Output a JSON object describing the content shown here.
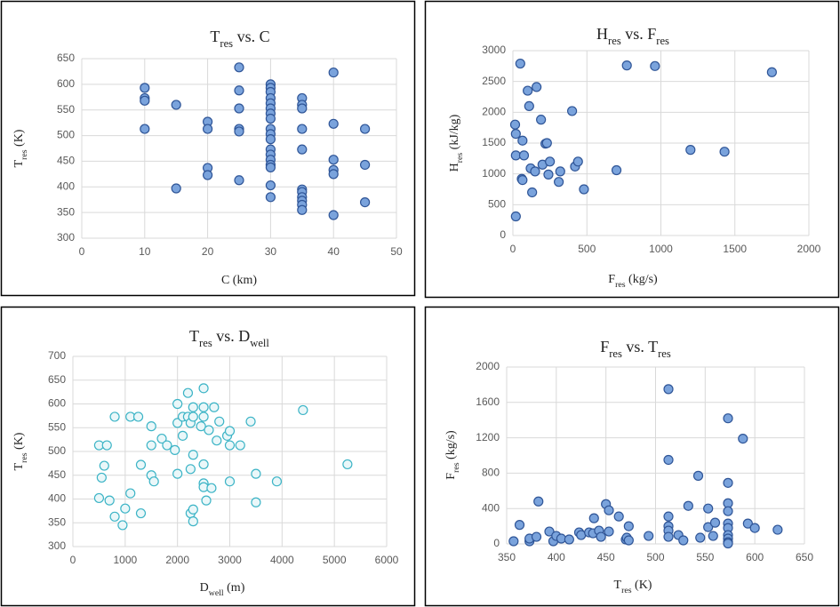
{
  "chart_data": [
    {
      "type": "scatter",
      "title": [
        {
          "text": "T"
        },
        {
          "text": "res",
          "sub": true
        },
        {
          "text": " vs. C"
        }
      ],
      "x_label": [
        {
          "text": "C (km)"
        }
      ],
      "y_label": [
        {
          "text": "T"
        },
        {
          "text": "res",
          "sub": true
        },
        {
          "text": " (K)"
        }
      ],
      "x": [
        10,
        10,
        10,
        10,
        15,
        15,
        20,
        20,
        20,
        20,
        25,
        25,
        25,
        25,
        25,
        25,
        30,
        30,
        30,
        30,
        30,
        30,
        30,
        30,
        30,
        30,
        30,
        30,
        30,
        30,
        30,
        30,
        30,
        30,
        35,
        35,
        35,
        35,
        35,
        35,
        35,
        35,
        35,
        35,
        35,
        40,
        40,
        40,
        40,
        40,
        40,
        45,
        45,
        45
      ],
      "y": [
        593,
        573,
        568,
        513,
        560,
        397,
        527,
        513,
        437,
        423,
        633,
        588,
        553,
        513,
        508,
        413,
        600,
        593,
        585,
        573,
        563,
        553,
        543,
        533,
        513,
        503,
        493,
        473,
        463,
        453,
        443,
        438,
        403,
        380,
        573,
        560,
        553,
        513,
        473,
        395,
        390,
        380,
        373,
        365,
        355,
        623,
        523,
        453,
        433,
        425,
        345,
        513,
        443,
        370
      ],
      "xlim": [
        0,
        50
      ],
      "ylim": [
        300,
        650
      ],
      "xticks": [
        0,
        10,
        20,
        30,
        40,
        50
      ],
      "yticks": [
        300,
        350,
        400,
        450,
        500,
        550,
        600,
        650
      ],
      "grid": true,
      "marker_color": "#7aa3dc",
      "marker_edge_color": "#2f5597"
    },
    {
      "type": "scatter",
      "title": [
        {
          "text": "H"
        },
        {
          "text": "res",
          "sub": true
        },
        {
          "text": " vs. F"
        },
        {
          "text": "res",
          "sub": true
        }
      ],
      "x_label": [
        {
          "text": "F"
        },
        {
          "text": "res",
          "sub": true
        },
        {
          "text": " (kg/s)"
        }
      ],
      "y_label": [
        {
          "text": "H"
        },
        {
          "text": "res",
          "sub": true
        },
        {
          "text": " (kJ/kg)"
        }
      ],
      "x": [
        50,
        15,
        20,
        65,
        20,
        75,
        60,
        65,
        100,
        110,
        160,
        190,
        120,
        130,
        150,
        200,
        220,
        230,
        240,
        250,
        310,
        320,
        400,
        420,
        440,
        480,
        700,
        770,
        960,
        1200,
        1430,
        1750,
        20
      ],
      "y": [
        2790,
        1800,
        1650,
        1540,
        1300,
        1300,
        920,
        900,
        2350,
        2100,
        2410,
        1880,
        1090,
        700,
        1040,
        1150,
        1490,
        1500,
        990,
        1200,
        870,
        1040,
        2020,
        1120,
        1200,
        750,
        1060,
        2760,
        2750,
        1390,
        1360,
        2650,
        310
      ],
      "xlim": [
        0,
        2000
      ],
      "ylim": [
        0,
        3000
      ],
      "xticks": [
        0,
        500,
        1000,
        1500,
        2000
      ],
      "yticks": [
        0,
        500,
        1000,
        1500,
        2000,
        2500,
        3000
      ],
      "grid": true,
      "marker_color": "#7aa3dc",
      "marker_edge_color": "#2f5597"
    },
    {
      "type": "scatter",
      "title": [
        {
          "text": "T"
        },
        {
          "text": "res",
          "sub": true
        },
        {
          "text": " vs. D"
        },
        {
          "text": "well",
          "sub": true
        }
      ],
      "x_label": [
        {
          "text": "D"
        },
        {
          "text": "well",
          "sub": true
        },
        {
          "text": " (m)"
        }
      ],
      "y_label": [
        {
          "text": "T"
        },
        {
          "text": "res",
          "sub": true
        },
        {
          "text": " (K)"
        }
      ],
      "x": [
        500,
        650,
        600,
        550,
        500,
        700,
        800,
        800,
        950,
        1000,
        1100,
        1100,
        1250,
        1300,
        1300,
        1500,
        1500,
        1500,
        1550,
        1700,
        1800,
        1950,
        2000,
        2000,
        2000,
        2100,
        2100,
        2200,
        2200,
        2300,
        2250,
        2300,
        2300,
        2250,
        2250,
        2300,
        2300,
        2500,
        2500,
        2500,
        2450,
        2500,
        2500,
        2500,
        2550,
        2600,
        2700,
        2750,
        2650,
        2800,
        2950,
        3000,
        3000,
        3000,
        3200,
        3400,
        3500,
        3500,
        3900,
        4400,
        5250
      ],
      "y": [
        513,
        513,
        470,
        445,
        402,
        397,
        573,
        363,
        345,
        380,
        573,
        412,
        573,
        472,
        370,
        553,
        513,
        450,
        437,
        527,
        513,
        503,
        600,
        560,
        453,
        573,
        533,
        623,
        573,
        593,
        560,
        573,
        493,
        463,
        370,
        378,
        353,
        633,
        593,
        573,
        553,
        473,
        433,
        425,
        397,
        545,
        593,
        523,
        423,
        563,
        533,
        543,
        513,
        437,
        513,
        563,
        453,
        393,
        437,
        587,
        473
      ],
      "xlim": [
        0,
        6000
      ],
      "ylim": [
        300,
        700
      ],
      "xticks": [
        0,
        1000,
        2000,
        3000,
        4000,
        5000,
        6000
      ],
      "yticks": [
        300,
        350,
        400,
        450,
        500,
        550,
        600,
        650,
        700
      ],
      "grid": true,
      "marker_color": "#eaf7f9",
      "marker_edge_color": "#3cb4c6"
    },
    {
      "type": "scatter",
      "title": [
        {
          "text": "F"
        },
        {
          "text": "res",
          "sub": true
        },
        {
          "text": " vs. T"
        },
        {
          "text": "res",
          "sub": true
        }
      ],
      "x_label": [
        {
          "text": "T"
        },
        {
          "text": "res",
          "sub": true
        },
        {
          "text": " (K)"
        }
      ],
      "y_label": [
        {
          "text": "F"
        },
        {
          "text": "res",
          "sub": true
        },
        {
          "text": " (kg/s)"
        }
      ],
      "x": [
        357,
        363,
        373,
        373,
        380,
        382,
        393,
        397,
        400,
        405,
        413,
        423,
        425,
        433,
        437,
        438,
        443,
        445,
        450,
        453,
        453,
        463,
        470,
        471,
        473,
        473,
        493,
        513,
        513,
        513,
        513,
        513,
        513,
        523,
        528,
        533,
        543,
        545,
        553,
        553,
        558,
        560,
        573,
        573,
        573,
        573,
        573,
        573,
        573,
        573,
        573,
        573,
        588,
        593,
        600,
        623
      ],
      "y": [
        30,
        215,
        30,
        60,
        80,
        480,
        140,
        30,
        90,
        60,
        50,
        130,
        100,
        130,
        120,
        290,
        150,
        80,
        450,
        140,
        380,
        310,
        50,
        70,
        200,
        40,
        90,
        1750,
        950,
        310,
        200,
        150,
        80,
        100,
        40,
        430,
        770,
        70,
        400,
        190,
        90,
        240,
        1420,
        690,
        460,
        370,
        230,
        180,
        100,
        60,
        20,
        5,
        1190,
        230,
        180,
        160
      ],
      "xlim": [
        350,
        650
      ],
      "ylim": [
        0,
        2000
      ],
      "xticks": [
        350,
        400,
        450,
        500,
        550,
        600,
        650
      ],
      "yticks": [
        0,
        400,
        800,
        1200,
        1600,
        2000
      ],
      "grid": true,
      "marker_color": "#7aa3dc",
      "marker_edge_color": "#2f5597"
    }
  ]
}
